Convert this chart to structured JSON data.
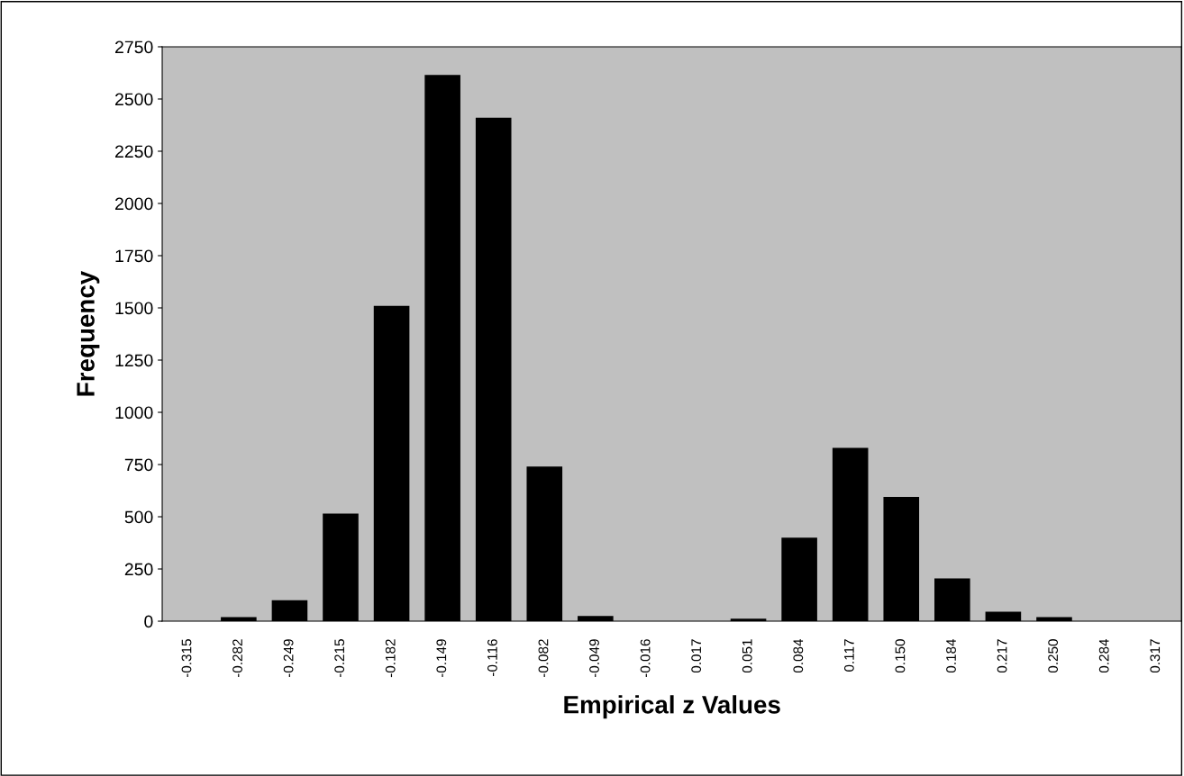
{
  "chart_data": {
    "type": "bar",
    "xlabel": "Empirical z Values",
    "ylabel": "Frequency",
    "categories": [
      "-0.315",
      "-0.282",
      "-0.249",
      "-0.215",
      "-0.182",
      "-0.149",
      "-0.116",
      "-0.082",
      "-0.049",
      "-0.016",
      "0.017",
      "0.051",
      "0.084",
      "0.117",
      "0.150",
      "0.184",
      "0.217",
      "0.250",
      "0.284",
      "0.317"
    ],
    "values": [
      0,
      20,
      100,
      515,
      1510,
      2615,
      2410,
      740,
      25,
      0,
      0,
      12,
      400,
      830,
      595,
      205,
      45,
      20,
      0,
      0
    ],
    "color": "#000000",
    "ylim": [
      0,
      2750
    ],
    "yticks": [
      0,
      250,
      500,
      750,
      1000,
      1250,
      1500,
      1750,
      2000,
      2250,
      2500,
      2750
    ],
    "grid": false,
    "legend": false
  }
}
